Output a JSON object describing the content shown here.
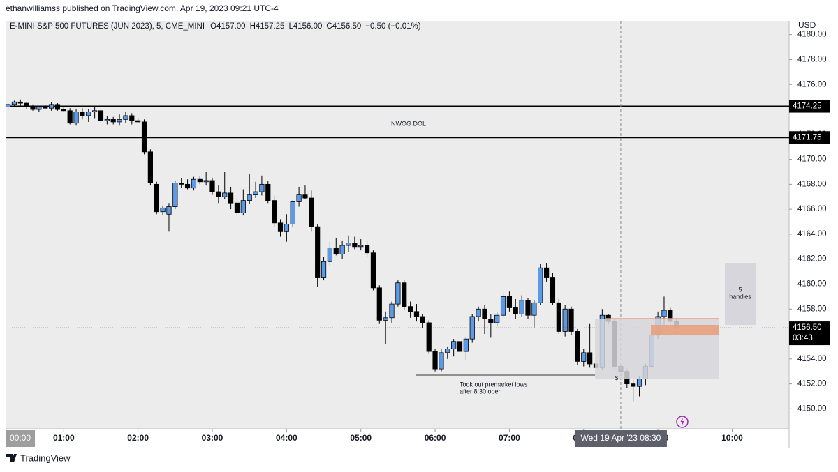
{
  "header": {
    "published": "ethanwilliamss published on TradingView.com, Apr 19, 2023 09:21 UTC-4"
  },
  "footer": {
    "brand": "TradingView"
  },
  "chart_data": {
    "type": "candlestick",
    "symbol": "E-MINI S&P 500 FUTURES (JUN 2023), 5, CME_MINI",
    "ohlc_text": [
      "O4157.00",
      "H4157.25",
      "L4156.00",
      "C4156.50",
      "−0.50 (−0.01%)"
    ],
    "currency": "USD",
    "up_color": "#5b9ae6",
    "down_color": "#000000",
    "x": [
      "00:15",
      "00:20",
      "00:25",
      "00:30",
      "00:35",
      "00:40",
      "00:45",
      "00:50",
      "00:55",
      "01:00",
      "01:05",
      "01:10",
      "01:15",
      "01:20",
      "01:25",
      "01:30",
      "01:35",
      "01:40",
      "01:45",
      "01:50",
      "01:55",
      "02:00",
      "02:05",
      "02:10",
      "02:15",
      "02:20",
      "02:25",
      "02:30",
      "02:35",
      "02:40",
      "02:45",
      "02:50",
      "02:55",
      "03:00",
      "03:05",
      "03:10",
      "03:15",
      "03:20",
      "03:25",
      "03:30",
      "03:35",
      "03:40",
      "03:45",
      "03:50",
      "03:55",
      "04:00",
      "04:05",
      "04:10",
      "04:15",
      "04:20",
      "04:25",
      "04:30",
      "04:35",
      "04:40",
      "04:45",
      "04:50",
      "04:55",
      "05:00",
      "05:05",
      "05:10",
      "05:15",
      "05:20",
      "05:25",
      "05:30",
      "05:35",
      "05:40",
      "05:45",
      "05:50",
      "05:55",
      "06:00",
      "06:05",
      "06:10",
      "06:15",
      "06:20",
      "06:25",
      "06:30",
      "06:35",
      "06:40",
      "06:45",
      "06:50",
      "06:55",
      "07:00",
      "07:05",
      "07:10",
      "07:15",
      "07:20",
      "07:25",
      "07:30",
      "07:35",
      "07:40",
      "07:45",
      "07:50",
      "07:55",
      "08:00",
      "08:05",
      "08:10",
      "08:15",
      "08:20",
      "08:25",
      "08:30",
      "08:35",
      "08:40",
      "08:45",
      "08:50",
      "08:55",
      "09:00",
      "09:05",
      "09:10",
      "09:15"
    ],
    "open": [
      4174.2,
      4174.4,
      4174.6,
      4174.5,
      4174.2,
      4174.0,
      4174.2,
      4174.1,
      4174.4,
      4174.0,
      4173.9,
      4172.9,
      4173.8,
      4173.5,
      4173.8,
      4173.9,
      4173.1,
      4173.2,
      4173.0,
      4173.2,
      4173.5,
      4173.1,
      4173.0,
      4170.6,
      4168.0,
      4165.8,
      4165.6,
      4166.2,
      4168.1,
      4168.0,
      4167.7,
      4168.4,
      4168.2,
      4168.3,
      4167.4,
      4167.0,
      4167.3,
      4166.5,
      4165.7,
      4166.7,
      4167.2,
      4167.4,
      4168.0,
      4166.7,
      4164.9,
      4164.2,
      4164.8,
      4166.6,
      4167.2,
      4166.9,
      4164.6,
      4160.5,
      4161.8,
      4162.9,
      4162.4,
      4163.1,
      4163.3,
      4163.0,
      4163.1,
      4162.5,
      4159.7,
      4157.1,
      4157.3,
      4158.4,
      4160.1,
      4158.2,
      4157.8,
      4157.4,
      4156.9,
      4154.6,
      4153.2,
      4154.5,
      4154.8,
      4155.4,
      4154.6,
      4155.6,
      4157.4,
      4158.0,
      4157.2,
      4156.9,
      4157.5,
      4159.0,
      4158.1,
      4157.6,
      4158.7,
      4157.5,
      4158.5,
      4161.3,
      4160.5,
      4158.5,
      4156.2,
      4158.0,
      4156.2,
      4153.8,
      4154.5,
      4153.6,
      4153.3,
      4157.5,
      4157.0,
      4153.4,
      4153.0,
      4152.0,
      4151.8,
      4152.4,
      4153.4,
      4155.9,
      4157.4,
      4157.9,
      4157.0
    ],
    "high": [
      4174.5,
      4174.7,
      4174.8,
      4174.6,
      4174.4,
      4174.3,
      4174.4,
      4174.6,
      4174.5,
      4174.3,
      4174.1,
      4174.0,
      4174.1,
      4174.0,
      4174.2,
      4174.0,
      4173.5,
      4173.4,
      4173.6,
      4173.8,
      4173.7,
      4173.3,
      4173.2,
      4170.8,
      4168.2,
      4166.3,
      4166.5,
      4168.3,
      4168.5,
      4168.4,
      4168.6,
      4168.7,
      4169.0,
      4168.5,
      4167.9,
      4169.0,
      4167.8,
      4166.9,
      4167.6,
      4168.8,
      4168.2,
      4168.7,
      4168.3,
      4167.1,
      4165.2,
      4165.6,
      4166.7,
      4167.8,
      4167.9,
      4167.5,
      4164.8,
      4162.2,
      4163.4,
      4163.7,
      4163.5,
      4163.9,
      4163.8,
      4163.6,
      4163.5,
      4162.7,
      4159.9,
      4157.8,
      4158.6,
      4160.3,
      4160.3,
      4158.6,
      4158.4,
      4157.6,
      4157.1,
      4154.8,
      4154.8,
      4155.0,
      4155.6,
      4155.8,
      4155.8,
      4157.6,
      4158.2,
      4158.3,
      4157.6,
      4157.8,
      4159.3,
      4159.4,
      4158.8,
      4159.1,
      4158.9,
      4158.7,
      4161.6,
      4161.7,
      4160.9,
      4158.8,
      4158.3,
      4158.2,
      4156.4,
      4154.8,
      4156.8,
      4153.8,
      4158.0,
      4157.6,
      4157.2,
      4153.6,
      4153.2,
      4152.3,
      4152.6,
      4153.6,
      4156.2,
      4157.8,
      4159.0,
      4158.1,
      4157.25
    ],
    "low": [
      4173.9,
      4174.2,
      4174.3,
      4174.0,
      4173.9,
      4173.8,
      4174.0,
      4173.9,
      4173.9,
      4173.8,
      4172.8,
      4172.7,
      4173.2,
      4173.0,
      4173.3,
      4172.9,
      4172.8,
      4172.8,
      4172.7,
      4172.9,
      4172.8,
      4172.9,
      4170.4,
      4167.9,
      4165.6,
      4165.5,
      4164.2,
      4166.0,
      4167.7,
      4167.6,
      4167.5,
      4168.0,
      4167.9,
      4167.2,
      4166.5,
      4166.8,
      4166.0,
      4165.4,
      4165.5,
      4166.4,
      4166.9,
      4167.1,
      4166.5,
      4164.6,
      4163.8,
      4163.4,
      4164.6,
      4166.2,
      4166.8,
      4164.2,
      4159.8,
      4160.3,
      4161.5,
      4162.3,
      4162.0,
      4162.6,
      4162.8,
      4162.7,
      4162.2,
      4159.5,
      4156.8,
      4155.2,
      4156.9,
      4158.2,
      4157.9,
      4157.3,
      4157.0,
      4156.5,
      4154.4,
      4153.0,
      4153.0,
      4154.0,
      4154.2,
      4154.2,
      4153.9,
      4155.3,
      4157.0,
      4156.0,
      4155.7,
      4156.6,
      4157.3,
      4157.8,
      4157.2,
      4157.4,
      4157.2,
      4156.5,
      4158.3,
      4160.2,
      4158.3,
      4156.0,
      4155.8,
      4155.9,
      4153.5,
      4153.4,
      4153.3,
      4152.9,
      4153.1,
      4156.8,
      4153.2,
      4152.6,
      4151.7,
      4150.6,
      4151.0,
      4151.9,
      4153.2,
      4155.6,
      4156.6,
      4156.6,
      4156.0
    ],
    "close": [
      4174.4,
      4174.6,
      4174.5,
      4174.2,
      4174.0,
      4174.2,
      4174.1,
      4174.4,
      4174.0,
      4173.9,
      4172.9,
      4173.8,
      4173.5,
      4173.8,
      4173.9,
      4173.1,
      4173.2,
      4173.0,
      4173.2,
      4173.5,
      4173.1,
      4173.0,
      4170.6,
      4168.1,
      4165.8,
      4166.1,
      4166.2,
      4168.1,
      4168.0,
      4167.7,
      4168.4,
      4168.2,
      4168.3,
      4167.4,
      4167.0,
      4167.3,
      4166.5,
      4165.7,
      4166.7,
      4167.2,
      4167.4,
      4168.0,
      4166.7,
      4164.9,
      4164.2,
      4164.8,
      4166.6,
      4167.2,
      4166.9,
      4164.6,
      4160.5,
      4161.8,
      4162.9,
      4162.4,
      4163.1,
      4163.3,
      4163.0,
      4163.1,
      4162.5,
      4159.7,
      4157.1,
      4157.3,
      4158.4,
      4160.1,
      4158.2,
      4157.8,
      4157.4,
      4156.9,
      4154.6,
      4153.2,
      4154.5,
      4154.8,
      4155.4,
      4154.6,
      4155.6,
      4157.4,
      4158.0,
      4157.2,
      4156.9,
      4157.5,
      4159.0,
      4158.1,
      4157.6,
      4158.7,
      4157.5,
      4158.5,
      4161.3,
      4160.5,
      4158.5,
      4156.2,
      4158.0,
      4156.2,
      4153.8,
      4154.5,
      4153.6,
      4153.3,
      4157.5,
      4157.0,
      4153.4,
      4153.0,
      4152.0,
      4151.8,
      4152.4,
      4153.4,
      4155.9,
      4157.4,
      4157.9,
      4157.0,
      4156.5
    ],
    "xlim": [
      "00:13",
      "10:46"
    ],
    "xticks": [
      "01:00",
      "02:00",
      "03:00",
      "04:00",
      "05:00",
      "06:00",
      "07:00",
      "08:00",
      "09:00",
      "10:00"
    ],
    "edge_x_label": "00:00",
    "crosshair": {
      "x": "08:30",
      "label": "Wed 19 Apr '23   08:30"
    },
    "ylim": [
      4148.4,
      4181.1
    ],
    "yticks": [
      {
        "value": 4150,
        "label": "4150.00"
      },
      {
        "value": 4152,
        "label": "4152.00"
      },
      {
        "value": 4154,
        "label": "4154.00"
      },
      {
        "value": 4156,
        "label": "4156.00"
      },
      {
        "value": 4158,
        "label": "4158.00"
      },
      {
        "value": 4160,
        "label": "4160.00"
      },
      {
        "value": 4162,
        "label": "4162.00"
      },
      {
        "value": 4164,
        "label": "4164.00"
      },
      {
        "value": 4166,
        "label": "4166.00"
      },
      {
        "value": 4168,
        "label": "4168.00"
      },
      {
        "value": 4170,
        "label": "4170.00"
      },
      {
        "value": 4172,
        "label": "4172.00"
      },
      {
        "value": 4174,
        "label": "4174.00"
      },
      {
        "value": 4176,
        "label": "4176.00"
      },
      {
        "value": 4178,
        "label": "4178.00"
      },
      {
        "value": 4180,
        "label": "4180.00"
      }
    ],
    "price_lines": [
      {
        "value": 4174.25,
        "label": "4174.25"
      },
      {
        "value": 4171.75,
        "label": "4171.75"
      }
    ],
    "last_price": {
      "value": 4156.5,
      "label": "4156.50",
      "countdown": "03:43"
    },
    "annotations": {
      "nwog": "NWOG DOL",
      "lows_1": "Took out premarket lows",
      "lows_2": "after 8:30 open",
      "handles_1": "5",
      "handles_2": "handles",
      "marker": "$"
    }
  }
}
